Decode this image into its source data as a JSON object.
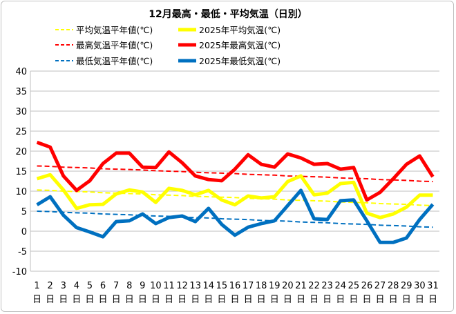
{
  "chart_data": {
    "type": "line",
    "title": "12月最高・最低・平均気温（日別）",
    "xlabel": "",
    "ylabel": "",
    "ylim": [
      -10,
      40
    ],
    "yticks": [
      -10,
      -5,
      0,
      5,
      10,
      15,
      20,
      25,
      30,
      35,
      40
    ],
    "grid": true,
    "legend_position": "top",
    "x": [
      1,
      2,
      3,
      4,
      5,
      6,
      7,
      8,
      9,
      10,
      11,
      12,
      13,
      14,
      15,
      16,
      17,
      18,
      19,
      20,
      21,
      22,
      23,
      24,
      25,
      26,
      27,
      28,
      29,
      30,
      31
    ],
    "x_tick_suffix": "日",
    "series": [
      {
        "name": "平均気温平年値(℃)",
        "color": "#ffff00",
        "style": "dashed",
        "values": [
          10.3,
          10.2,
          10.0,
          9.9,
          9.8,
          9.6,
          9.5,
          9.4,
          9.3,
          9.1,
          9.0,
          8.9,
          8.7,
          8.6,
          8.5,
          8.4,
          8.2,
          8.1,
          8.0,
          7.8,
          7.7,
          7.6,
          7.5,
          7.3,
          7.2,
          7.1,
          6.9,
          6.8,
          6.7,
          6.5,
          6.4
        ]
      },
      {
        "name": "2025年平均気温(℃)",
        "color": "#ffff00",
        "style": "solid",
        "values": [
          13.1,
          14.1,
          10.3,
          5.7,
          6.6,
          6.7,
          9.3,
          10.3,
          9.8,
          7.2,
          10.7,
          10.2,
          9.1,
          10.2,
          7.8,
          6.6,
          8.8,
          8.3,
          8.6,
          12.4,
          13.8,
          9.1,
          9.5,
          11.9,
          12.2,
          4.5,
          3.4,
          4.3,
          6.0,
          9.0,
          9.0
        ]
      },
      {
        "name": "最高気温平年値(℃)",
        "color": "#ff0000",
        "style": "dashed",
        "values": [
          16.3,
          16.2,
          16.0,
          15.9,
          15.8,
          15.6,
          15.5,
          15.4,
          15.3,
          15.1,
          15.0,
          14.9,
          14.7,
          14.6,
          14.5,
          14.4,
          14.2,
          14.1,
          14.0,
          13.8,
          13.7,
          13.6,
          13.5,
          13.3,
          13.2,
          13.1,
          12.9,
          12.8,
          12.7,
          12.5,
          12.4
        ]
      },
      {
        "name": "2025年最高気温(℃)",
        "color": "#ff0000",
        "style": "solid",
        "values": [
          22.2,
          21.0,
          13.8,
          10.2,
          12.6,
          16.9,
          19.5,
          19.5,
          16.0,
          15.9,
          19.8,
          17.1,
          13.8,
          12.9,
          12.6,
          15.5,
          19.1,
          16.7,
          16.0,
          19.3,
          18.3,
          16.7,
          16.9,
          15.5,
          15.9,
          7.8,
          9.7,
          13.1,
          16.7,
          18.8,
          13.6
        ]
      },
      {
        "name": "最低気温平年値(℃)",
        "color": "#0070c0",
        "style": "dashed",
        "values": [
          5.0,
          4.9,
          4.7,
          4.6,
          4.5,
          4.3,
          4.2,
          4.1,
          3.9,
          3.8,
          3.7,
          3.5,
          3.4,
          3.3,
          3.1,
          3.0,
          2.9,
          2.7,
          2.6,
          2.5,
          2.3,
          2.2,
          2.1,
          1.9,
          1.8,
          1.7,
          1.5,
          1.4,
          1.3,
          1.1,
          1.0
        ]
      },
      {
        "name": "2025年最低気温(℃)",
        "color": "#0070c0",
        "style": "solid",
        "values": [
          6.6,
          8.6,
          4.0,
          0.9,
          -0.2,
          -1.4,
          2.4,
          2.6,
          4.3,
          1.9,
          3.4,
          3.8,
          2.4,
          5.7,
          1.7,
          -1.0,
          1.0,
          1.9,
          2.6,
          6.4,
          10.2,
          3.1,
          2.9,
          7.6,
          7.8,
          2.6,
          -2.8,
          -2.8,
          -1.7,
          2.9,
          6.7
        ]
      }
    ]
  }
}
